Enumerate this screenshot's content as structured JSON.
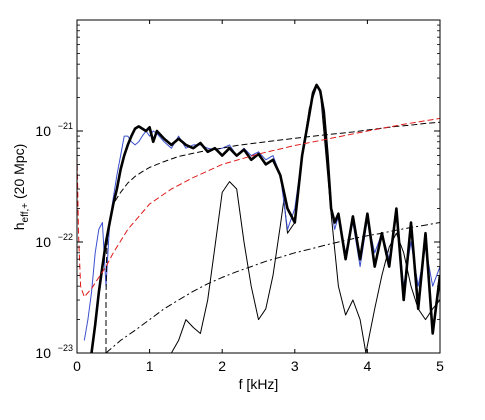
{
  "chart_data": {
    "type": "line",
    "xlabel": "f [kHz]",
    "ylabel": {
      "base": "h",
      "subscript": "eff,+",
      "suffix": " (20 Mpc)"
    },
    "xlim": [
      0,
      5
    ],
    "ylim": [
      1e-23,
      1e-20
    ],
    "yscale": "log",
    "grid": false,
    "legend": "none",
    "x_ticks": [
      0,
      1,
      2,
      3,
      4,
      5
    ],
    "y_ticks": [
      {
        "value": 1e-23,
        "mant": "10",
        "exp": "−23"
      },
      {
        "value": 1e-22,
        "mant": "10",
        "exp": "−22"
      },
      {
        "value": 1e-21,
        "mant": "10",
        "exp": "−21"
      }
    ],
    "series": [
      {
        "color": "#000000",
        "style": "solid",
        "weight": "thin",
        "x": [
          1.3,
          1.4,
          1.5,
          1.6,
          1.7,
          1.8,
          1.9,
          2.0,
          2.1,
          2.2,
          2.3,
          2.4,
          2.5,
          2.6,
          2.7,
          2.8,
          2.85,
          2.9,
          3.0,
          3.1,
          3.2,
          3.3,
          3.35,
          3.4,
          3.5,
          3.6,
          3.7,
          3.8,
          3.9,
          3.98,
          4.1,
          4.2,
          4.3,
          4.4,
          4.5,
          4.6,
          4.7,
          4.8,
          4.9,
          5.0
        ],
        "y": [
          1e-23,
          1.3e-23,
          2e-23,
          1.7e-23,
          1.5e-23,
          3e-23,
          9e-23,
          2.8e-22,
          3.5e-22,
          3e-22,
          1e-22,
          4e-23,
          2e-23,
          2.5e-23,
          5e-23,
          1.4e-22,
          2.4e-22,
          1.2e-22,
          1.5e-22,
          6e-22,
          1.6e-21,
          2.5e-21,
          2.3e-21,
          1e-21,
          1.8e-22,
          4e-23,
          2.2e-23,
          3e-23,
          2e-23,
          1e-23,
          2.5e-23,
          5e-23,
          9e-23,
          1.2e-22,
          8e-23,
          4e-23,
          2.5e-23,
          2e-23,
          2.5e-23,
          3e-23
        ]
      },
      {
        "color": "#3a4fcf",
        "style": "solid",
        "weight": "thin",
        "x": [
          0.1,
          0.15,
          0.2,
          0.25,
          0.3,
          0.35,
          0.4,
          0.45,
          0.5,
          0.55,
          0.6,
          0.65,
          0.7,
          0.75,
          0.8,
          0.85,
          0.9,
          0.95,
          1.0,
          1.05,
          1.1,
          1.2,
          1.3,
          1.4,
          1.5,
          1.6,
          1.7,
          1.8,
          1.9,
          2.0,
          2.1,
          2.2,
          2.3,
          2.4,
          2.5,
          2.6,
          2.7,
          2.8,
          2.9,
          3.0,
          3.1,
          3.2,
          3.25,
          3.3,
          3.35,
          3.4,
          3.45,
          3.5,
          3.55,
          3.6,
          3.7,
          3.8,
          3.9,
          4.0,
          4.1,
          4.2,
          4.3,
          4.4,
          4.5,
          4.6,
          4.7,
          4.8,
          4.9,
          5.0
        ],
        "y": [
          1.3e-23,
          2e-23,
          3.5e-23,
          8e-23,
          1.3e-22,
          1.5e-22,
          4e-23,
          1.5e-22,
          2.5e-22,
          4e-22,
          6e-22,
          9e-22,
          9e-22,
          8e-22,
          7.5e-22,
          8e-22,
          9e-22,
          1e-21,
          9e-22,
          1e-21,
          9.5e-22,
          8e-22,
          7e-22,
          9e-22,
          7e-22,
          7.5e-22,
          7.5e-22,
          7e-22,
          6.8e-22,
          7e-22,
          7.5e-22,
          6e-22,
          7e-22,
          6e-22,
          6.5e-22,
          5.5e-22,
          6e-22,
          4e-22,
          1.3e-22,
          2e-22,
          6e-22,
          1.5e-21,
          2.3e-21,
          2.6e-21,
          2.2e-21,
          1.3e-21,
          5e-22,
          2e-22,
          1.3e-22,
          1.7e-22,
          8e-23,
          1.5e-22,
          6e-23,
          1.6e-22,
          8e-23,
          1.2e-22,
          7e-23,
          1.8e-22,
          4e-23,
          1e-22,
          4e-23,
          9e-23,
          4e-23,
          6e-23
        ]
      },
      {
        "color": "#000000",
        "style": "solid",
        "weight": "thick",
        "x": [
          0.2,
          0.25,
          0.3,
          0.35,
          0.4,
          0.45,
          0.5,
          0.55,
          0.6,
          0.65,
          0.7,
          0.75,
          0.8,
          0.85,
          0.9,
          0.95,
          1.0,
          1.05,
          1.1,
          1.2,
          1.3,
          1.4,
          1.5,
          1.6,
          1.7,
          1.8,
          1.9,
          2.0,
          2.1,
          2.2,
          2.3,
          2.4,
          2.5,
          2.6,
          2.7,
          2.8,
          2.9,
          3.0,
          3.1,
          3.2,
          3.25,
          3.3,
          3.35,
          3.4,
          3.45,
          3.5,
          3.55,
          3.6,
          3.7,
          3.8,
          3.9,
          4.0,
          4.1,
          4.2,
          4.3,
          4.4,
          4.5,
          4.6,
          4.7,
          4.8,
          4.9,
          5.0
        ],
        "y": [
          1e-23,
          1.8e-23,
          3.5e-23,
          6e-23,
          1e-22,
          1.5e-22,
          2.2e-22,
          3e-22,
          4.5e-22,
          6e-22,
          7.5e-22,
          9e-22,
          1.05e-21,
          1.1e-21,
          1.05e-21,
          1e-21,
          1.08e-21,
          8e-22,
          1e-21,
          8.5e-22,
          7.5e-22,
          8.5e-22,
          7.5e-22,
          7e-22,
          7.8e-22,
          6.5e-22,
          7e-22,
          6e-22,
          7e-22,
          6e-22,
          6.8e-22,
          5.5e-22,
          6.2e-22,
          5e-22,
          5.5e-22,
          4e-22,
          2e-22,
          1.5e-22,
          6e-22,
          1.4e-21,
          2.2e-21,
          2.6e-21,
          2.3e-21,
          1.5e-21,
          6e-22,
          2e-22,
          1.5e-22,
          1.8e-22,
          7e-23,
          1.7e-22,
          7e-23,
          1.8e-22,
          6e-23,
          1.2e-22,
          6e-23,
          2e-22,
          3e-23,
          1.5e-22,
          2.5e-23,
          1.2e-22,
          1.5e-23,
          5e-23
        ]
      },
      {
        "color": "#000000",
        "style": "dashed",
        "weight": "thin",
        "x": [
          0.4,
          0.4,
          0.41,
          0.45,
          0.5,
          0.6,
          0.7,
          0.8,
          0.9,
          1.0,
          1.2,
          1.4,
          1.6,
          1.8,
          2.0,
          2.2,
          2.4,
          2.6,
          2.8,
          3.0,
          3.2,
          3.4,
          3.6,
          3.8,
          4.0,
          4.2,
          4.4,
          4.6,
          4.8,
          5.0
        ],
        "y": [
          1e-23,
          3e-23,
          9e-23,
          1.6e-22,
          2.2e-22,
          2.8e-22,
          3.4e-22,
          3.9e-22,
          4.3e-22,
          4.7e-22,
          5.3e-22,
          5.9e-22,
          6.3e-22,
          6.7e-22,
          7e-22,
          7.4e-22,
          7.7e-22,
          8e-22,
          8.3e-22,
          8.6e-22,
          8.9e-22,
          9.2e-22,
          9.5e-22,
          9.8e-22,
          1.02e-21,
          1.06e-21,
          1.1e-21,
          1.13e-21,
          1.17e-21,
          1.2e-21
        ]
      },
      {
        "color": "#e01919",
        "style": "dashed",
        "weight": "thin",
        "x": [
          0.0,
          0.01,
          0.02,
          0.05,
          0.1,
          0.2,
          0.3,
          0.4,
          0.5,
          0.7,
          1.0,
          1.3,
          1.6,
          2.0,
          2.5,
          3.0,
          3.5,
          4.0,
          4.5,
          5.0
        ],
        "y": [
          6e-22,
          3e-22,
          1.2e-22,
          4e-23,
          3.2e-23,
          3.8e-23,
          4.8e-23,
          6e-23,
          8e-23,
          1.3e-22,
          2.2e-22,
          3e-22,
          3.8e-22,
          5e-22,
          6.2e-22,
          7.4e-22,
          8.6e-22,
          1e-21,
          1.15e-21,
          1.3e-21
        ]
      },
      {
        "color": "#000000",
        "style": "dashdot",
        "weight": "thin",
        "x": [
          0.4,
          0.6,
          0.8,
          1.0,
          1.2,
          1.4,
          1.6,
          1.8,
          2.0,
          2.2,
          2.4,
          2.6,
          2.8,
          3.0,
          3.2,
          3.4,
          3.6,
          3.8,
          4.0,
          4.2,
          4.4,
          4.6,
          4.8,
          5.0
        ],
        "y": [
          1e-23,
          1.3e-23,
          1.6e-23,
          2e-23,
          2.5e-23,
          3e-23,
          3.6e-23,
          4.2e-23,
          4.8e-23,
          5.4e-23,
          6e-23,
          6.7e-23,
          7.3e-23,
          8e-23,
          8.6e-23,
          9.3e-23,
          1e-22,
          1.07e-22,
          1.14e-22,
          1.2e-22,
          1.28e-22,
          1.35e-22,
          1.42e-22,
          1.5e-22
        ]
      }
    ]
  }
}
